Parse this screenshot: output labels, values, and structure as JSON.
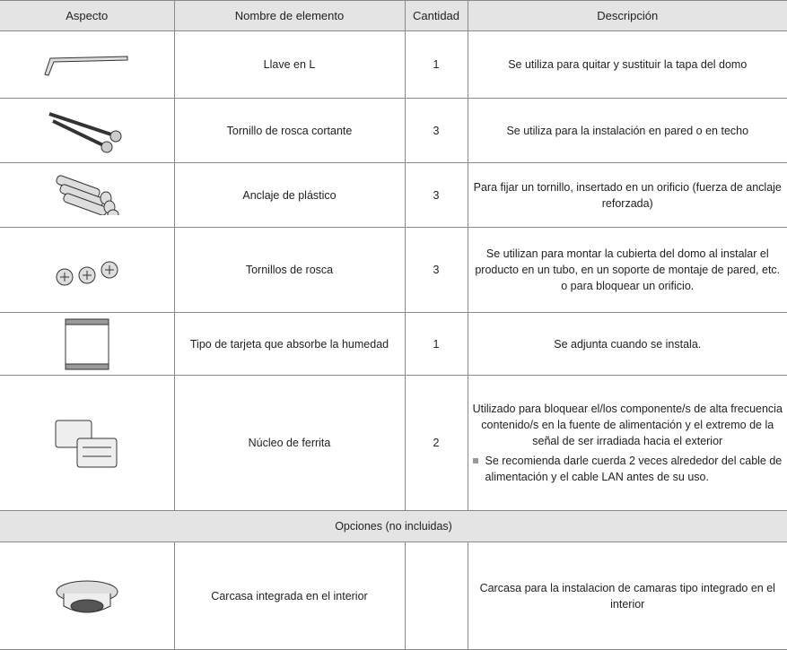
{
  "table": {
    "header": [
      "Aspecto",
      "Nombre de elemento",
      "Cantidad",
      "Descripción"
    ],
    "rows": [
      {
        "name": "Llave en L",
        "quantity": 1,
        "description": "Se utiliza para quitar y sustituir la tapa del domo"
      },
      {
        "name": "Tornillo de rosca cortante",
        "quantity": 3,
        "description": "Se utiliza para la instalación en pared o en techo"
      },
      {
        "name": "Anclaje de plástico",
        "quantity": 3,
        "description": "Para fijar un tornillo, insertado en un orificio (fuerza de anclaje reforzada)"
      },
      {
        "name": "Tornillos de rosca",
        "quantity": 3,
        "description": "Se utilizan para montar la cubierta del domo al instalar el producto en un tubo, en un soporte de montaje de pared, etc. o para bloquear un orificio."
      },
      {
        "name": "Tipo de tarjeta que absorbe la humedad",
        "quantity": 1,
        "description": "Se adjunta cuando se instala."
      },
      {
        "name": "Núcleo de ferrita",
        "quantity": 2,
        "description": "Utilizado para bloquear el/los componente/s de alta frecuencia contenido/s en la fuente de alimentación y el extremo de la señal de ser irradiada hacia el exterior",
        "note": "Se recomienda darle cuerda 2 veces alrededor del cable de alimentación y el cable LAN antes de su uso."
      }
    ],
    "options_title": "Opciones (no incluidas)",
    "options": [
      {
        "name": "Carcasa integrada en el interior",
        "description": "Carcasa para la instalacion de camaras tipo integrado en el interior"
      }
    ]
  }
}
